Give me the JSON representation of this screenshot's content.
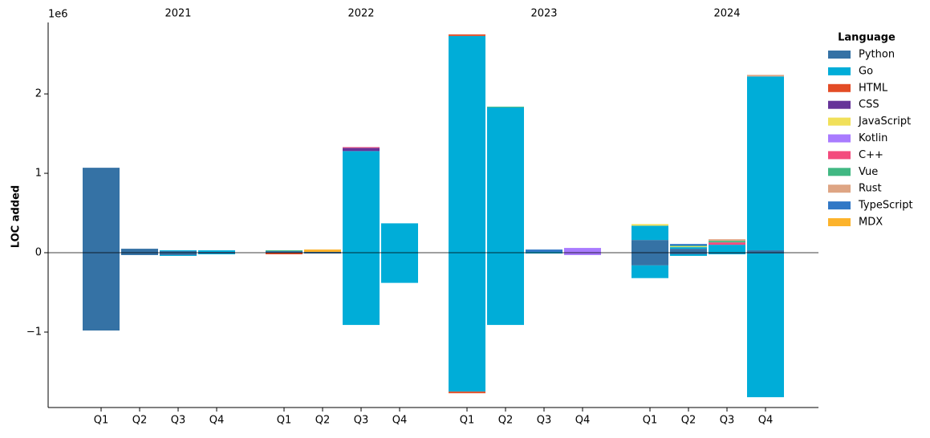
{
  "chart_data": {
    "type": "stacked_diverging_bar",
    "y_label": "LOC added",
    "y_offset_label": "1e6",
    "legend_title": "Language",
    "legend_position": "right",
    "years": [
      "2021",
      "2022",
      "2023",
      "2024"
    ],
    "categories": [
      "Q1",
      "Q2",
      "Q3",
      "Q4",
      "Q1",
      "Q2",
      "Q3",
      "Q4",
      "Q1",
      "Q2",
      "Q3",
      "Q4",
      "Q1",
      "Q2",
      "Q3",
      "Q4"
    ],
    "ylim": [
      -1.95,
      2.9
    ],
    "yticks": [
      {
        "value": -1,
        "label": "−1"
      },
      0,
      1,
      2
    ],
    "series": [
      {
        "name": "Python",
        "color": "#3572A5",
        "added": [
          1.07,
          0.05,
          0.02,
          0.01,
          0.02,
          0.01,
          0,
          0,
          0,
          0,
          0,
          0,
          0.16,
          0.05,
          0,
          0.03
        ],
        "removed": [
          -0.98,
          -0.03,
          -0.03,
          -0.01,
          0,
          -0.01,
          0,
          0,
          0,
          0,
          0,
          0,
          -0.16,
          -0.02,
          -0.01,
          -0.01
        ]
      },
      {
        "name": "Go",
        "color": "#00ADD8",
        "added": [
          0,
          0,
          0.01,
          0.02,
          0,
          0,
          1.28,
          0.37,
          2.73,
          1.83,
          0.01,
          0,
          0.18,
          0.02,
          0.1,
          2.19
        ],
        "removed": [
          0,
          0,
          -0.01,
          -0.01,
          0,
          0,
          -0.91,
          -0.38,
          -1.75,
          -0.91,
          -0.01,
          0,
          -0.16,
          -0.02,
          -0.01,
          -1.81
        ]
      },
      {
        "name": "HTML",
        "color": "#E34C26",
        "added": [
          0,
          0,
          0,
          0,
          0,
          0,
          0,
          0,
          0.02,
          0,
          0,
          0,
          0,
          0,
          0,
          0
        ],
        "removed": [
          0,
          0,
          0,
          0,
          -0.02,
          0,
          0,
          0,
          -0.02,
          0,
          0,
          0,
          0,
          0,
          0,
          0
        ]
      },
      {
        "name": "CSS",
        "color": "#663399",
        "added": [
          0,
          0,
          0,
          0,
          0,
          0,
          0.04,
          0,
          0,
          0,
          0,
          0,
          0,
          0,
          0,
          0
        ],
        "removed": [
          0,
          0,
          0,
          0,
          0,
          0,
          0,
          0,
          0,
          0,
          0,
          0,
          0,
          0,
          0,
          0
        ]
      },
      {
        "name": "JavaScript",
        "color": "#F1E05A",
        "added": [
          0,
          0,
          0,
          0,
          0,
          0,
          0,
          0,
          0,
          0,
          0,
          0,
          0.02,
          0.01,
          0,
          0
        ],
        "removed": [
          0,
          0,
          0,
          0,
          0,
          0,
          0,
          0,
          0,
          0,
          0,
          0,
          0,
          0,
          0,
          0
        ]
      },
      {
        "name": "Kotlin",
        "color": "#A97BFF",
        "added": [
          0,
          0,
          0,
          0,
          0,
          0,
          0,
          0,
          0,
          0,
          0,
          0.06,
          0,
          0,
          0,
          0
        ],
        "removed": [
          0,
          0,
          0,
          0,
          0,
          0,
          0,
          0,
          0,
          0,
          0,
          -0.03,
          0,
          0,
          0,
          0
        ]
      },
      {
        "name": "C++",
        "color": "#F34B7D",
        "added": [
          0,
          0,
          0,
          0,
          0,
          0,
          0.01,
          0,
          0,
          0,
          0,
          0,
          0,
          0,
          0.03,
          0
        ],
        "removed": [
          0,
          0,
          0,
          0,
          0,
          0,
          0,
          0,
          0,
          0,
          0,
          0,
          0,
          0,
          0,
          0
        ]
      },
      {
        "name": "Vue",
        "color": "#41B883",
        "added": [
          0,
          0,
          0,
          0,
          0.01,
          0,
          0,
          0,
          0,
          0.01,
          0,
          0,
          0,
          0.01,
          0.02,
          0
        ],
        "removed": [
          0,
          0,
          0,
          0,
          0,
          0,
          0,
          0,
          0,
          0,
          0,
          0,
          0,
          0,
          0,
          0
        ]
      },
      {
        "name": "Rust",
        "color": "#DEA584",
        "added": [
          0,
          0,
          0,
          0,
          0,
          0,
          0,
          0,
          0,
          0,
          0,
          0,
          0,
          0,
          0.02,
          0.02
        ],
        "removed": [
          0,
          0,
          0,
          0,
          0,
          0,
          0,
          0,
          0,
          0,
          0,
          0,
          0,
          0,
          0,
          0
        ]
      },
      {
        "name": "TypeScript",
        "color": "#3178C6",
        "added": [
          0,
          0,
          0,
          0,
          0,
          0,
          0,
          0,
          0,
          0,
          0.03,
          0,
          0,
          0.02,
          0,
          0
        ],
        "removed": [
          0,
          0,
          0,
          0,
          0,
          0,
          0,
          0,
          0,
          0,
          0,
          0,
          0,
          0,
          0,
          0
        ]
      },
      {
        "name": "MDX",
        "color": "#FCB32C",
        "added": [
          0,
          0,
          0,
          0,
          0,
          0.03,
          0,
          0,
          0,
          0,
          0,
          0,
          0,
          0,
          0,
          0
        ],
        "removed": [
          0,
          0,
          0,
          0,
          0,
          0,
          0,
          0,
          0,
          0,
          0,
          0,
          0,
          0,
          0,
          0
        ]
      }
    ]
  }
}
